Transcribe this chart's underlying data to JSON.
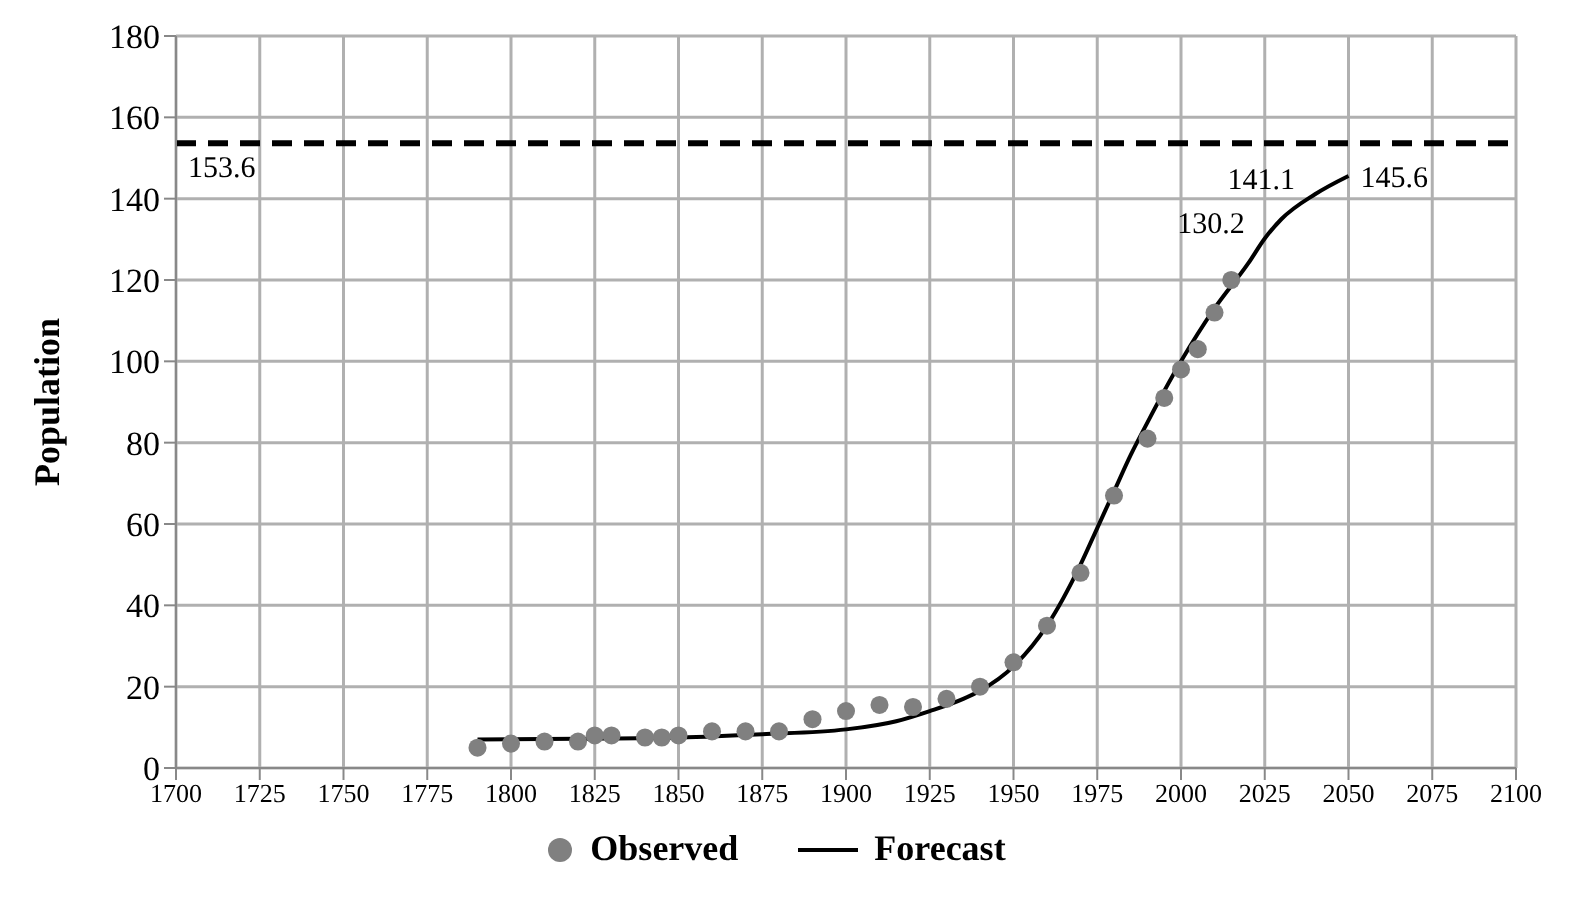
{
  "chart_data": {
    "type": "scatter",
    "ylabel": "Population",
    "xlim": [
      1700,
      2100
    ],
    "xticks": [
      1700,
      1725,
      1750,
      1775,
      1800,
      1825,
      1850,
      1875,
      1900,
      1925,
      1950,
      1975,
      2000,
      2025,
      2050,
      2075,
      2100
    ],
    "ylim": [
      0,
      180
    ],
    "yticks": [
      0,
      20,
      40,
      60,
      80,
      100,
      120,
      140,
      160,
      180
    ],
    "grid": true,
    "legend": "bottom",
    "series": [
      {
        "name": "Observed",
        "color": "#808080",
        "marker": "circle",
        "x": [
          1790,
          1800,
          1810,
          1820,
          1825,
          1830,
          1840,
          1845,
          1850,
          1860,
          1870,
          1880,
          1890,
          1900,
          1910,
          1920,
          1930,
          1940,
          1950,
          1960,
          1970,
          1980,
          1990,
          1995,
          2000,
          2005,
          2010,
          2015
        ],
        "values": [
          5,
          6,
          6.5,
          6.5,
          8,
          8,
          7.5,
          7.5,
          8,
          9,
          9,
          9,
          12,
          14,
          15.5,
          15,
          17,
          20,
          26,
          35,
          48,
          67,
          81,
          91,
          98,
          103,
          112,
          120
        ]
      },
      {
        "name": "Forecast",
        "type": "line",
        "color": "#000000",
        "marker": "none",
        "line_style": "solid",
        "x": [
          1790,
          1820,
          1850,
          1875,
          1900,
          1915,
          1925,
          1935,
          1940,
          1950,
          1960,
          1970,
          1975,
          1980,
          1985,
          1990,
          2000,
          2010,
          2020,
          2025,
          2030,
          2040,
          2050
        ],
        "values": [
          7,
          7.2,
          7.5,
          8.3,
          9.5,
          11.5,
          14,
          17,
          19,
          25,
          35,
          50,
          59,
          68,
          77,
          85,
          100,
          113,
          124,
          130.2,
          135,
          141.1,
          145.6
        ]
      }
    ],
    "ref_lines": [
      {
        "axis": "y",
        "value": 153.6,
        "label": "153.6",
        "color": "#000000",
        "line_style": "dashed"
      }
    ],
    "annotations": [
      {
        "text": "130.2",
        "x": 2025,
        "y": 130.2
      },
      {
        "text": "141.1",
        "x": 2040,
        "y": 141.1
      },
      {
        "text": "145.6",
        "x": 2050,
        "y": 145.6
      }
    ]
  }
}
